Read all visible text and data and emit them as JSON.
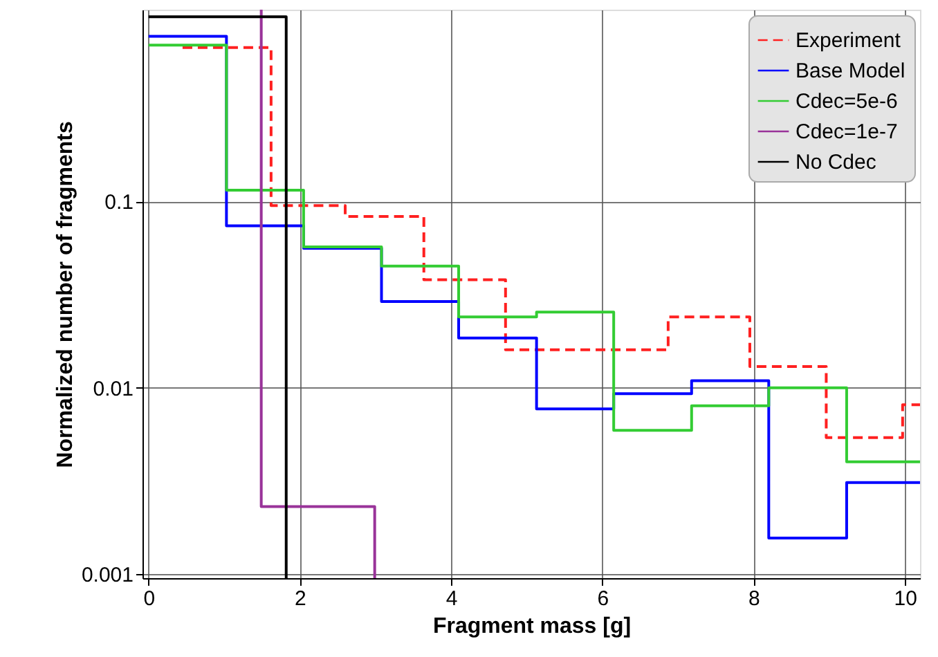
{
  "chart_data": {
    "type": "step",
    "xlabel": "Fragment mass [g]",
    "ylabel": "Normalized number of fragments",
    "log": "y",
    "grid": true,
    "legend": "top right",
    "xlim": [
      -0.08,
      10.2
    ],
    "xticks": [
      0,
      2,
      4,
      6,
      8,
      10
    ],
    "ylim": [
      0.00095,
      1.07
    ],
    "yticks": [
      0.001,
      0.01,
      0.1
    ],
    "series": [
      {
        "name": "Experiment",
        "color": "#ff2020",
        "line_style": "dashed",
        "x": [
          0.45,
          1.62,
          2.6,
          3.64,
          4.72,
          6.87,
          7.95,
          8.96,
          9.97,
          10.2
        ],
        "values": [
          0.67,
          0.095,
          0.083,
          0.038,
          0.016,
          0.024,
          0.013,
          0.0054,
          0.0081,
          0.0081
        ]
      },
      {
        "name": "Base Model",
        "color": "#0000ff",
        "line_style": "solid",
        "x": [
          0,
          1.03,
          2.05,
          3.08,
          4.1,
          5.13,
          6.15,
          7.18,
          8.2,
          9.23,
          10.2
        ],
        "values": [
          0.77,
          0.074,
          0.056,
          0.029,
          0.0185,
          0.0077,
          0.0093,
          0.0109,
          0.00156,
          0.0031,
          0.0031
        ]
      },
      {
        "name": "Cdec=5e-6",
        "color": "#33cc33",
        "line_style": "solid",
        "x": [
          0,
          1.03,
          2.05,
          3.08,
          4.1,
          5.13,
          6.15,
          7.18,
          8.2,
          9.23,
          10.2
        ],
        "values": [
          0.69,
          0.115,
          0.057,
          0.045,
          0.024,
          0.0255,
          0.0059,
          0.008,
          0.01,
          0.004,
          0.004
        ]
      },
      {
        "name": "Cdec=1e-7",
        "color": "#993399",
        "line_style": "solid",
        "x": [
          1.49,
          1.49,
          2.99
        ],
        "values": [
          1.07,
          0.0023,
          0.00095
        ]
      },
      {
        "name": "No Cdec",
        "color": "#000000",
        "line_style": "solid",
        "x": [
          0,
          1.82
        ],
        "values": [
          0.98,
          0.00095
        ]
      }
    ]
  }
}
